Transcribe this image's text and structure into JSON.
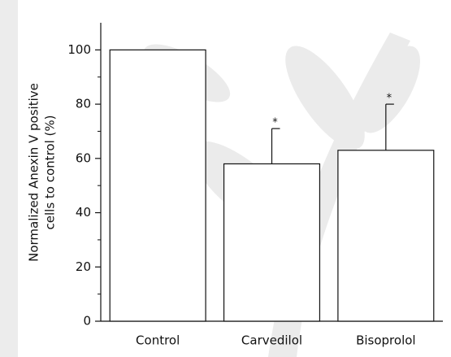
{
  "chart_data": {
    "type": "bar",
    "ylabel": [
      "Normalized Anexin V positive",
      "cells to control (%)"
    ],
    "categories": [
      "Control",
      "Carvedilol",
      "Bisoprolol"
    ],
    "values": [
      100,
      58,
      63
    ],
    "errors": [
      null,
      13,
      17
    ],
    "significance": [
      null,
      "*",
      "*"
    ],
    "color": "#ffffff",
    "ylim": [
      0,
      110
    ],
    "yticks": [
      0,
      20,
      40,
      60,
      80,
      100
    ],
    "yticks_minor": [
      10,
      30,
      50,
      70,
      90
    ]
  }
}
